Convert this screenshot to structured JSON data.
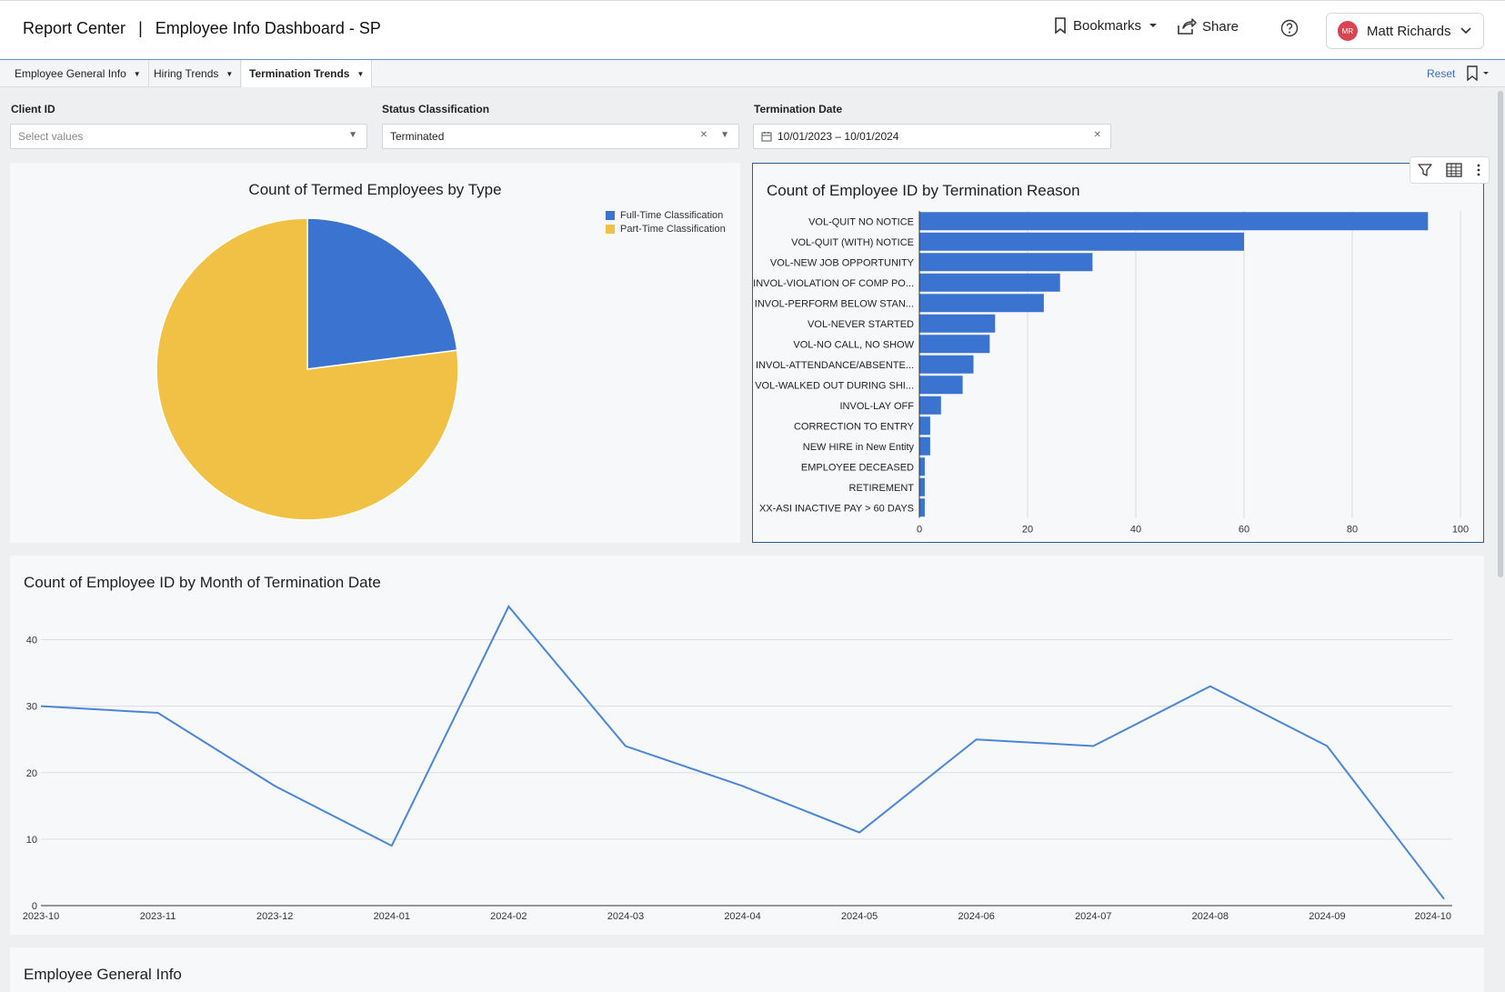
{
  "header": {
    "app": "Report Center",
    "separator": "|",
    "title": "Employee Info Dashboard - SP",
    "bookmarks": "Bookmarks",
    "share": "Share",
    "user_initials": "MR",
    "user_name": "Matt Richards"
  },
  "tabs": [
    {
      "label": "Employee General Info",
      "active": false
    },
    {
      "label": "Hiring Trends",
      "active": false
    },
    {
      "label": "Termination Trends",
      "active": true
    }
  ],
  "reset_label": "Reset",
  "filters": {
    "client_id": {
      "label": "Client ID",
      "placeholder": "Select values"
    },
    "status": {
      "label": "Status Classification",
      "value": "Terminated"
    },
    "term_date": {
      "label": "Termination Date",
      "value": "10/01/2023 – 10/01/2024"
    }
  },
  "colors": {
    "blue": "#3a73d0",
    "yellow": "#f0c145",
    "line": "#4a86d8"
  },
  "chart_data": [
    {
      "type": "pie",
      "title": "Count of Termed Employees by Type",
      "legend_position": "top-right",
      "slices": [
        {
          "name": "Full-Time Classification",
          "fraction": 0.23,
          "color": "#3a73d0"
        },
        {
          "name": "Part-Time Classification",
          "fraction": 0.77,
          "color": "#f0c145"
        }
      ]
    },
    {
      "type": "bar",
      "orientation": "horizontal",
      "title": "Count of Employee ID by Termination Reason",
      "categories": [
        "VOL-QUIT NO NOTICE",
        "VOL-QUIT (WITH) NOTICE",
        "VOL-NEW JOB OPPORTUNITY",
        "INVOL-VIOLATION OF COMP PO...",
        "INVOL-PERFORM BELOW STAN...",
        "VOL-NEVER STARTED",
        "VOL-NO CALL, NO SHOW",
        "INVOL-ATTENDANCE/ABSENTE...",
        "VOL-WALKED OUT DURING SHI...",
        "INVOL-LAY OFF",
        "CORRECTION TO ENTRY",
        "NEW HIRE in New Entity",
        "EMPLOYEE DECEASED",
        "RETIREMENT",
        "XX-ASI INACTIVE PAY > 60 DAYS"
      ],
      "values": [
        94,
        60,
        32,
        26,
        23,
        14,
        13,
        10,
        8,
        4,
        2,
        2,
        1,
        1,
        1
      ],
      "xlim": [
        0,
        100
      ],
      "xticks": [
        0,
        20,
        40,
        60,
        80,
        100
      ],
      "grid": true
    },
    {
      "type": "line",
      "title": "Count of Employee ID by Month of Termination Date",
      "x": [
        "2023-10",
        "2023-11",
        "2023-12",
        "2024-01",
        "2024-02",
        "2024-03",
        "2024-04",
        "2024-05",
        "2024-06",
        "2024-07",
        "2024-08",
        "2024-09",
        "2024-10"
      ],
      "values": [
        30,
        29,
        18,
        9,
        45,
        24,
        18,
        11,
        25,
        24,
        33,
        24,
        1
      ],
      "ylim": [
        0,
        45
      ],
      "yticks": [
        0,
        10,
        20,
        30,
        40
      ],
      "grid": true
    }
  ],
  "bottom_panel": {
    "title": "Employee General Info"
  }
}
